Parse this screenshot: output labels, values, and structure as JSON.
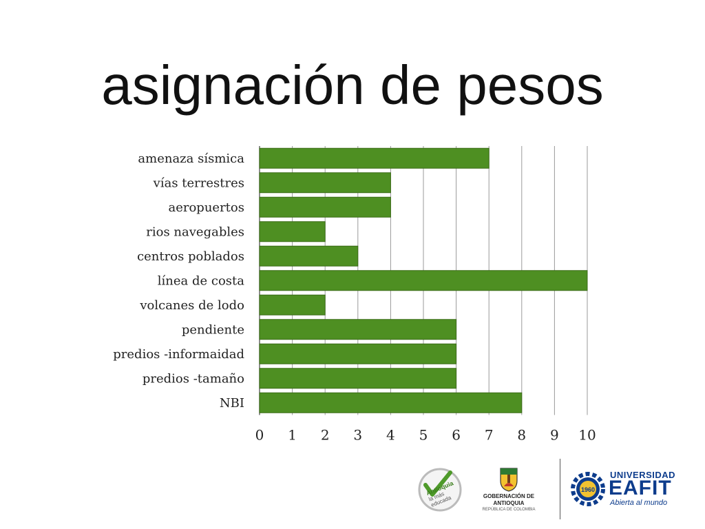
{
  "slide": {
    "title": "asignación de pesos"
  },
  "chart_data": {
    "type": "bar",
    "orientation": "horizontal",
    "categories": [
      "amenaza sísmica",
      "vías terrestres",
      "aeropuertos",
      "rios navegables",
      "centros poblados",
      "línea de costa",
      "volcanes de lodo",
      "pendiente",
      "predios -informaidad",
      "predios -tamaño",
      "NBI"
    ],
    "values": [
      7,
      4,
      4,
      2,
      3,
      10,
      2,
      6,
      6,
      6,
      8
    ],
    "xticks": [
      "0",
      "1",
      "2",
      "3",
      "4",
      "5",
      "6",
      "7",
      "8",
      "9",
      "10"
    ],
    "xlim": [
      0,
      10
    ],
    "title": "",
    "xlabel": "",
    "ylabel": "",
    "grid": "vertical",
    "bar_color": "#4e8f22",
    "bar_edge_color": "#3a6b17",
    "grid_color": "#999999"
  },
  "logos": {
    "antioquia": {
      "line1": "Antioquia",
      "line2": "la más",
      "line3": "educada"
    },
    "gobernacion": {
      "name": "GOBERNACIÓN DE ANTIOQUIA",
      "sub": "REPÚBLICA DE COLOMBIA"
    },
    "eafit": {
      "line1": "UNIVERSIDAD",
      "name": "EAFIT",
      "tagline": "Abierta al mundo",
      "year": "1960"
    }
  }
}
